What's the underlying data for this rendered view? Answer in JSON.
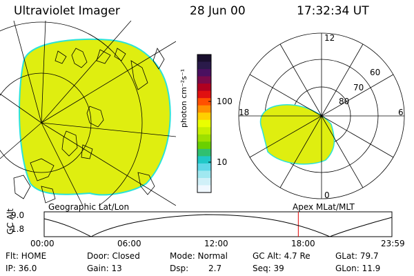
{
  "header": {
    "title": "Ultraviolet Imager",
    "date": "28 Jun 00",
    "time": "17:32:34 UT"
  },
  "colorbar": {
    "label": "photon cm⁻²s⁻¹",
    "ticks": [
      "100",
      "10"
    ],
    "colors": [
      "#1a0f2e",
      "#2a1a4a",
      "#4a1060",
      "#7a0a4a",
      "#b00020",
      "#e01010",
      "#ff5000",
      "#ff9000",
      "#ffd000",
      "#eaff00",
      "#c8f000",
      "#9ee000",
      "#6ad000",
      "#30c070",
      "#20c8c8",
      "#60d8e8",
      "#a0e8f0",
      "#d0f0f8",
      "#f0f8ff"
    ]
  },
  "left_panel": {
    "label": "Geographic Lat/Lon",
    "fill_color": "#dfee10",
    "edge_color": "#29e3d9"
  },
  "right_panel": {
    "label": "Apex MLat/MLT",
    "hours": [
      "12",
      "18",
      "6",
      "0"
    ],
    "lat_rings": [
      "60",
      "70",
      "80"
    ],
    "fill_color": "#dfee10",
    "edge_color": "#29e3d9"
  },
  "altitude_plot": {
    "ylabel": "GC Alt",
    "yticks": [
      "9.0",
      "1.8"
    ],
    "xticks": [
      "00:00",
      "06:00",
      "12:00",
      "18:00",
      "23:59"
    ],
    "marker_color": "#e00000",
    "marker_time_hours": 17.54
  },
  "status": {
    "filter": "Flt: HOME",
    "door": "Door: Closed",
    "mode": "Mode: Normal",
    "gc_alt": "GC Alt: 4.7 Re",
    "glat": "GLat:  79.7",
    "ip": "IP: 36.0",
    "gain": "Gain: 13",
    "dsp_label": "Dsp:",
    "dsp_value": "2.7",
    "seq": "Seq: 39",
    "glon": "GLon:  11.9"
  }
}
